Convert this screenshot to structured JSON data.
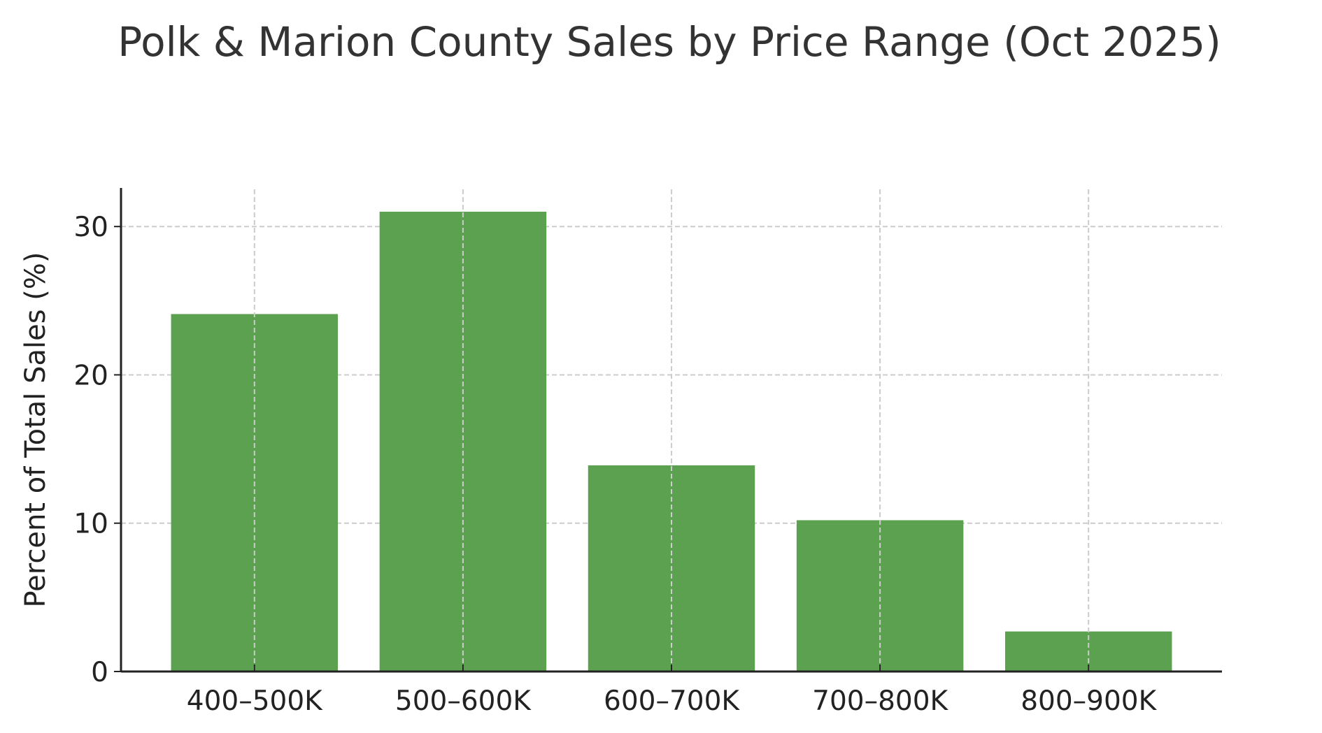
{
  "chart_data": {
    "type": "bar",
    "title": "Polk & Marion County Sales by Price Range (Oct 2025)",
    "xlabel": "",
    "ylabel": "Percent of Total Sales (%)",
    "categories": [
      "400–500K",
      "500–600K",
      "600–700K",
      "700–800K",
      "800–900K"
    ],
    "values": [
      24.1,
      31.0,
      13.9,
      10.2,
      2.7
    ],
    "ylim": [
      0,
      32.6
    ],
    "yticks": [
      0,
      10,
      20,
      30
    ],
    "grid": true,
    "bar_color": "#5ba150",
    "grid_color": "#cccccc"
  }
}
